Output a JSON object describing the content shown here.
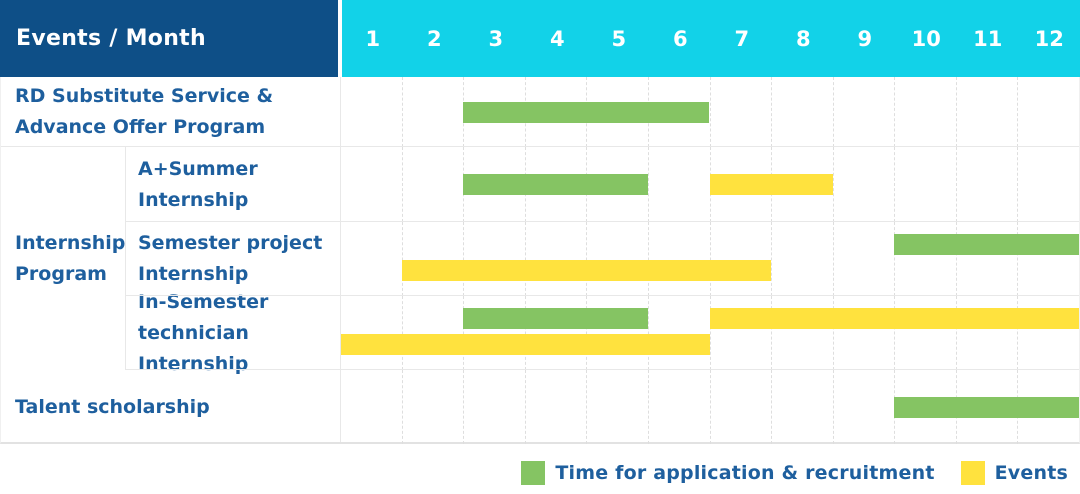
{
  "header": {
    "title": "Events / Month",
    "months": [
      "1",
      "2",
      "3",
      "4",
      "5",
      "6",
      "7",
      "8",
      "9",
      "10",
      "11",
      "12"
    ]
  },
  "colors": {
    "header_bg": "#0e4f87",
    "months_bg": "#12d2e8",
    "label_text": "#1e5f9e",
    "application": "#85c463",
    "events": "#ffe23e",
    "grid": "#e8e8e8",
    "grid_dashed": "#dedede"
  },
  "chart_data": {
    "type": "bar",
    "variant": "gantt-schedule",
    "x_axis": {
      "label": "Month",
      "ticks": [
        1,
        2,
        3,
        4,
        5,
        6,
        7,
        8,
        9,
        10,
        11,
        12
      ],
      "range": [
        1,
        12
      ]
    },
    "grid": "dashed-vertical",
    "legend_position": "bottom-right",
    "series_meta": [
      {
        "name": "application",
        "label": "Time for application & recruitment",
        "color": "#85c463"
      },
      {
        "name": "events",
        "label": "Events",
        "color": "#ffe23e"
      }
    ],
    "group": {
      "label": "Internship Program",
      "label_lines": [
        "Internship",
        "Program"
      ],
      "row_start": 1,
      "row_end": 3
    },
    "rows": [
      {
        "label": "RD Substitute Service & Advance Offer Program",
        "label_lines": [
          "RD Substitute Service &",
          "Advance Offer Program"
        ],
        "group": "",
        "height": 70,
        "bars": [
          {
            "series": "application",
            "start_month": 3,
            "end_month": 6,
            "lane": "center"
          }
        ]
      },
      {
        "label": "A+Summer Internship",
        "label_lines": [
          "A+Summer",
          "Internship"
        ],
        "group": "Internship Program",
        "height": 75,
        "bars": [
          {
            "series": "application",
            "start_month": 3,
            "end_month": 5,
            "lane": "center"
          },
          {
            "series": "events",
            "start_month": 7,
            "end_month": 8,
            "lane": "center"
          }
        ]
      },
      {
        "label": "Semester project Internship",
        "label_lines": [
          "Semester project",
          "Internship"
        ],
        "group": "Internship Program",
        "height": 74,
        "bars": [
          {
            "series": "application",
            "start_month": 10,
            "end_month": 12,
            "lane": "upper"
          },
          {
            "series": "events",
            "start_month": 2,
            "end_month": 7,
            "lane": "lower"
          }
        ]
      },
      {
        "label": "In-Semester technician Internship",
        "label_lines": [
          "In-Semester",
          "technician Internship"
        ],
        "group": "Internship Program",
        "height": 74,
        "bars": [
          {
            "series": "application",
            "start_month": 3,
            "end_month": 5,
            "lane": "upper"
          },
          {
            "series": "events",
            "start_month": 7,
            "end_month": 12,
            "lane": "upper"
          },
          {
            "series": "events",
            "start_month": 1,
            "end_month": 6,
            "lane": "lower"
          }
        ]
      },
      {
        "label": "Talent scholarship",
        "label_lines": [
          "Talent scholarship"
        ],
        "group": "",
        "height": 74,
        "bars": [
          {
            "series": "application",
            "start_month": 10,
            "end_month": 12,
            "lane": "center"
          }
        ]
      }
    ],
    "legend": [
      {
        "series": "application",
        "label": "Time for application & recruitment",
        "color": "#85c463"
      },
      {
        "series": "events",
        "label": "Events",
        "color": "#ffe23e"
      }
    ]
  }
}
